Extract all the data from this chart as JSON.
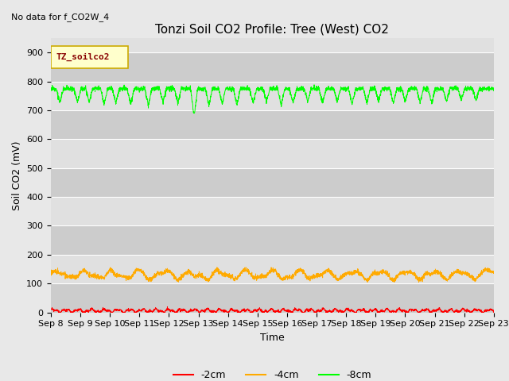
{
  "title": "Tonzi Soil CO2 Profile: Tree (West) CO2",
  "no_data_label": "No data for f_CO2W_4",
  "ylabel": "Soil CO2 (mV)",
  "xlabel": "Time",
  "legend_label": "TZ_soilco2",
  "ylim": [
    0,
    950
  ],
  "yticks": [
    0,
    100,
    200,
    300,
    400,
    500,
    600,
    700,
    800,
    900
  ],
  "xtick_labels": [
    "Sep 8",
    "Sep 9",
    "Sep 10",
    "Sep 11",
    "Sep 12",
    "Sep 13",
    "Sep 14",
    "Sep 15",
    "Sep 16",
    "Sep 17",
    "Sep 18",
    "Sep 19",
    "Sep 20",
    "Sep 21",
    "Sep 22",
    "Sep 23"
  ],
  "line_colors": {
    "2cm": "#ff0000",
    "4cm": "#ffaa00",
    "8cm": "#00ff00"
  },
  "legend_labels": {
    "2cm": "-2cm",
    "4cm": "-4cm",
    "8cm": "-8cm"
  },
  "bg_color": "#e8e8e8",
  "plot_bg_light": "#e0e0e0",
  "plot_bg_dark": "#cccccc",
  "n_points": 3000,
  "green_base": 775,
  "orange_base": 135,
  "red_base": 6,
  "title_fontsize": 11,
  "label_fontsize": 9,
  "tick_fontsize": 8,
  "legend_box_color": "#ffffcc",
  "legend_box_edge": "#ccaa00"
}
